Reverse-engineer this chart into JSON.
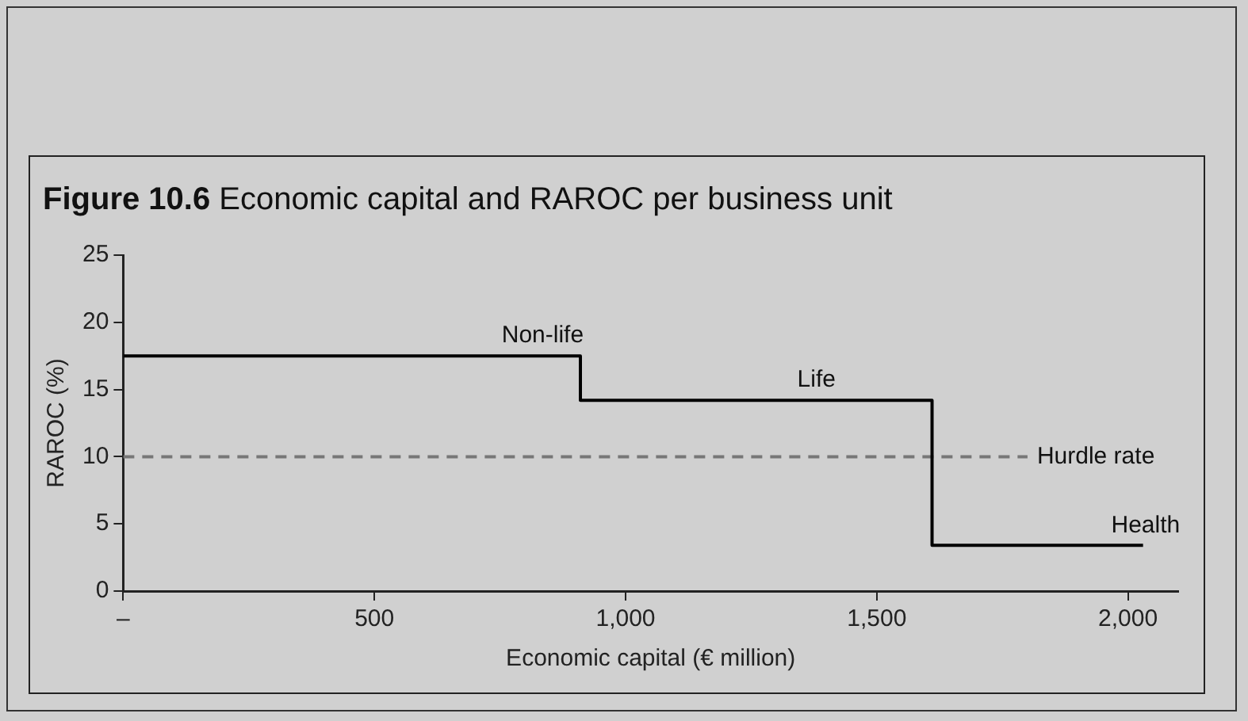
{
  "chart_data": {
    "type": "step",
    "title": "Figure 10.6 Economic capital and RAROC per business unit",
    "xlabel": "Economic capital (€ million)",
    "ylabel": "RAROC (%)",
    "xlim": [
      0,
      2100
    ],
    "xticks": [
      {
        "value": 0,
        "label": "–"
      },
      500,
      {
        "value": 1000,
        "label": "1,000"
      },
      {
        "value": 1500,
        "label": "1,500"
      },
      {
        "value": 2000,
        "label": "2,000"
      }
    ],
    "ylim": [
      0,
      25
    ],
    "yticks": [
      0,
      5,
      10,
      15,
      20,
      25
    ],
    "series": [
      {
        "color": "#000000",
        "x": [
          0,
          910,
          1610,
          2030
        ],
        "values": [
          17.5,
          14.2,
          3.4,
          3.4
        ]
      },
      {
        "name": "Hurdle rate",
        "type": "line",
        "line_style": "dashed",
        "color": "#777777",
        "x": [
          0,
          1800
        ],
        "values": [
          10,
          10
        ]
      }
    ],
    "annotations": [
      {
        "text": "Non-life",
        "x": 835,
        "y": 17.5
      },
      {
        "text": "Life",
        "x": 1380,
        "y": 14.2
      },
      {
        "text": "Health",
        "x": 2035,
        "y": 3.4
      }
    ]
  }
}
